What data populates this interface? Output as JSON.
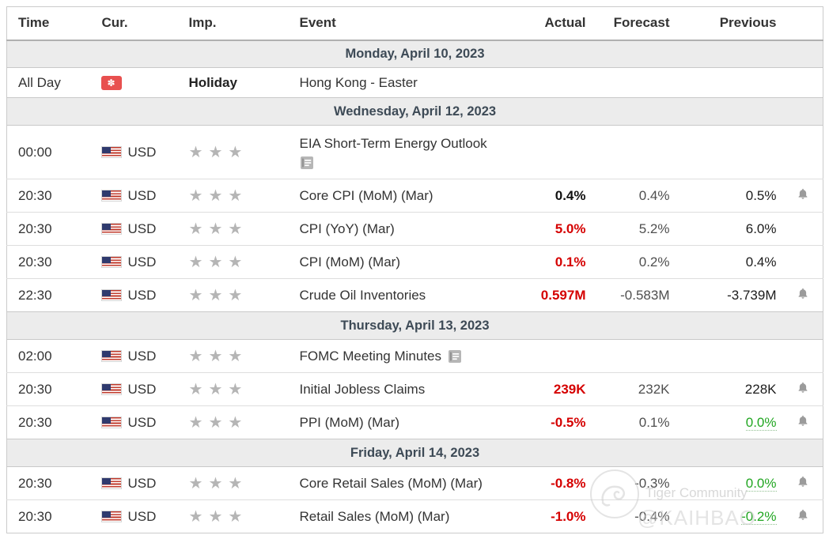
{
  "table": {
    "headers": {
      "time": "Time",
      "cur": "Cur.",
      "imp": "Imp.",
      "event": "Event",
      "actual": "Actual",
      "forecast": "Forecast",
      "previous": "Previous"
    },
    "sections": [
      {
        "date": "Monday, April 10, 2023",
        "rows": [
          {
            "time": "All Day",
            "flag": "hk",
            "flag_glyph": "✽",
            "currency": "",
            "stars": 0,
            "holiday_label": "Holiday",
            "event": "Hong Kong - Easter",
            "report_icon": "",
            "actual": "",
            "actual_style": "",
            "forecast": "",
            "previous": "",
            "previous_style": "",
            "bell": false,
            "height": "holiday"
          }
        ]
      },
      {
        "date": "Wednesday, April 12, 2023",
        "rows": [
          {
            "time": "00:00",
            "flag": "us",
            "currency": "USD",
            "stars": 3,
            "holiday_label": "",
            "event": "EIA Short-Term Energy Outlook",
            "report_icon": "below",
            "actual": "",
            "actual_style": "",
            "forecast": "",
            "previous": "",
            "previous_style": "",
            "bell": false,
            "height": "tall"
          },
          {
            "time": "20:30",
            "flag": "us",
            "currency": "USD",
            "stars": 3,
            "holiday_label": "",
            "event": "Core CPI (MoM) (Mar)",
            "report_icon": "",
            "actual": "0.4%",
            "actual_style": "bold",
            "forecast": "0.4%",
            "previous": "0.5%",
            "previous_style": "",
            "bell": true,
            "height": ""
          },
          {
            "time": "20:30",
            "flag": "us",
            "currency": "USD",
            "stars": 3,
            "holiday_label": "",
            "event": "CPI (YoY) (Mar)",
            "report_icon": "",
            "actual": "5.0%",
            "actual_style": "red",
            "forecast": "5.2%",
            "previous": "6.0%",
            "previous_style": "",
            "bell": false,
            "height": ""
          },
          {
            "time": "20:30",
            "flag": "us",
            "currency": "USD",
            "stars": 3,
            "holiday_label": "",
            "event": "CPI (MoM) (Mar)",
            "report_icon": "",
            "actual": "0.1%",
            "actual_style": "red",
            "forecast": "0.2%",
            "previous": "0.4%",
            "previous_style": "",
            "bell": false,
            "height": ""
          },
          {
            "time": "22:30",
            "flag": "us",
            "currency": "USD",
            "stars": 3,
            "holiday_label": "",
            "event": "Crude Oil Inventories",
            "report_icon": "",
            "actual": "0.597M",
            "actual_style": "red",
            "forecast": "-0.583M",
            "previous": "-3.739M",
            "previous_style": "",
            "bell": true,
            "height": ""
          }
        ]
      },
      {
        "date": "Thursday, April 13, 2023",
        "rows": [
          {
            "time": "02:00",
            "flag": "us",
            "currency": "USD",
            "stars": 3,
            "holiday_label": "",
            "event": "FOMC Meeting Minutes",
            "report_icon": "inline",
            "actual": "",
            "actual_style": "",
            "forecast": "",
            "previous": "",
            "previous_style": "",
            "bell": false,
            "height": ""
          },
          {
            "time": "20:30",
            "flag": "us",
            "currency": "USD",
            "stars": 3,
            "holiday_label": "",
            "event": "Initial Jobless Claims",
            "report_icon": "",
            "actual": "239K",
            "actual_style": "red",
            "forecast": "232K",
            "previous": "228K",
            "previous_style": "",
            "bell": true,
            "height": ""
          },
          {
            "time": "20:30",
            "flag": "us",
            "currency": "USD",
            "stars": 3,
            "holiday_label": "",
            "event": "PPI (MoM) (Mar)",
            "report_icon": "",
            "actual": "-0.5%",
            "actual_style": "red",
            "forecast": "0.1%",
            "previous": "0.0%",
            "previous_style": "green",
            "bell": true,
            "height": ""
          }
        ]
      },
      {
        "date": "Friday, April 14, 2023",
        "rows": [
          {
            "time": "20:30",
            "flag": "us",
            "currency": "USD",
            "stars": 3,
            "holiday_label": "",
            "event": "Core Retail Sales (MoM) (Mar)",
            "report_icon": "",
            "actual": "-0.8%",
            "actual_style": "red",
            "forecast": "-0.3%",
            "previous": "0.0%",
            "previous_style": "green",
            "bell": true,
            "height": ""
          },
          {
            "time": "20:30",
            "flag": "us",
            "currency": "USD",
            "stars": 3,
            "holiday_label": "",
            "event": "Retail Sales (MoM) (Mar)",
            "report_icon": "",
            "actual": "-1.0%",
            "actual_style": "red",
            "forecast": "-0.4%",
            "previous": "-0.2%",
            "previous_style": "green",
            "bell": true,
            "height": ""
          }
        ]
      }
    ]
  },
  "icons": {
    "star": "★",
    "importance_star_color": "#b5b5b5"
  },
  "colors": {
    "actual_worse": "#d50000",
    "previous_revised_better": "#21a621",
    "day_row_bg": "#ececec",
    "day_text": "#3d4a56"
  },
  "watermark": {
    "brand": "Tiger Community",
    "handle": "@KAIHBAO"
  }
}
